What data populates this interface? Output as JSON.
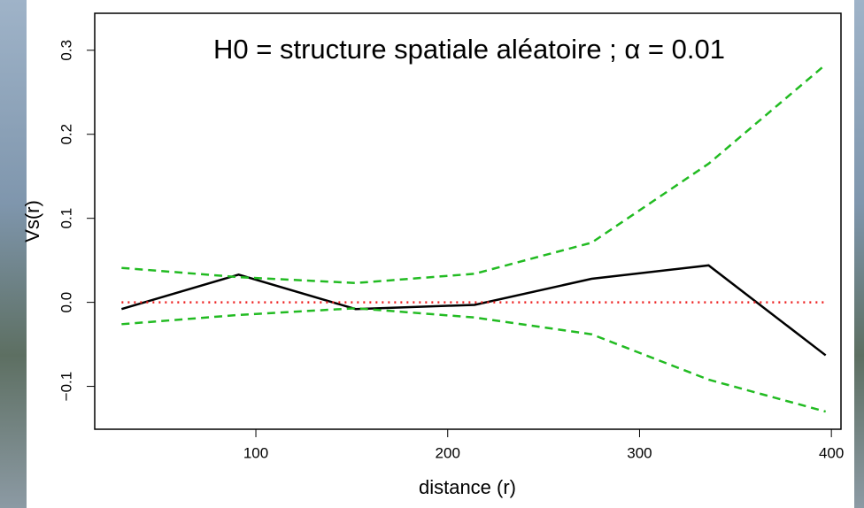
{
  "chart_data": {
    "type": "line",
    "annotation": "H0 = structure spatiale aléatoire ; α = 0.01",
    "x_label": "distance (r)",
    "y_label": "Vs(r)",
    "x": [
      30,
      91,
      152,
      214,
      275,
      336,
      397
    ],
    "series": [
      {
        "color": "#000000",
        "line_style": "solid",
        "values": [
          -0.008,
          0.033,
          -0.008,
          -0.003,
          0.028,
          0.044,
          -0.063
        ]
      },
      {
        "color": "#22bb22",
        "line_style": "dashed",
        "values": [
          0.041,
          0.03,
          0.023,
          0.034,
          0.071,
          0.165,
          0.283
        ]
      },
      {
        "color": "#22bb22",
        "line_style": "dashed",
        "values": [
          -0.026,
          -0.015,
          -0.007,
          -0.018,
          -0.038,
          -0.092,
          -0.13
        ]
      },
      {
        "color": "#ee2222",
        "line_style": "dotted",
        "values": [
          0,
          0,
          0,
          0,
          0,
          0,
          0
        ]
      }
    ],
    "xlim": [
      16,
      405
    ],
    "ylim": [
      -0.151,
      0.344
    ],
    "xticks": [
      100,
      200,
      300,
      400
    ],
    "yticks": [
      {
        "value": -0.1,
        "label": "−0.1"
      },
      {
        "value": 0,
        "label": "0.0"
      },
      0.1,
      0.2,
      0.3
    ]
  }
}
